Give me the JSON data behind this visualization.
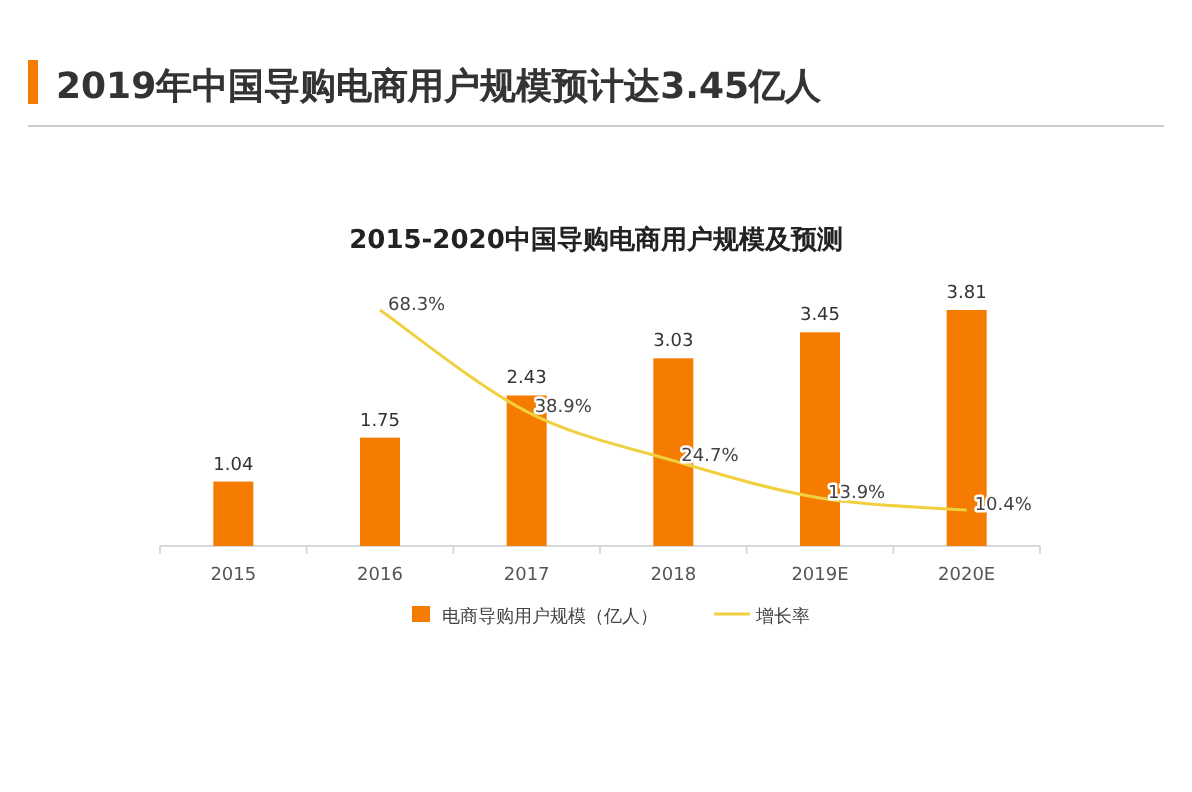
{
  "chart_data": {
    "type": "bar",
    "title": "2019年中国导购电商用户规模预计达3.45亿人",
    "subtitle": "2015-2020中国导购电商用户规模及预测",
    "categories": [
      "2015",
      "2016",
      "2017",
      "2018",
      "2019E",
      "2020E"
    ],
    "series": [
      {
        "name": "电商导购用户规模（亿人）",
        "color": "#f57c00",
        "values": [
          1.04,
          1.75,
          2.43,
          3.03,
          3.45,
          3.81
        ],
        "value_labels": [
          "1.04",
          "1.75",
          "2.43",
          "3.03",
          "3.45",
          "3.81"
        ]
      },
      {
        "name": "增长率",
        "type": "line",
        "axis": "y2",
        "color": "#f0d040",
        "values": [
          null,
          68.3,
          38.9,
          24.7,
          13.9,
          10.4
        ],
        "value_labels": [
          null,
          "68.3%",
          "38.9%",
          "24.7%",
          "13.9%",
          "10.4%"
        ]
      }
    ],
    "legend": "bottom"
  }
}
